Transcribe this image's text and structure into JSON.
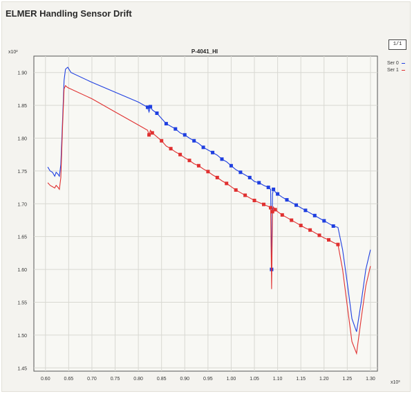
{
  "window": {
    "title": "ELMER Handling Sensor Drift"
  },
  "legend_box": {
    "label": "1/1"
  },
  "chart_data": {
    "type": "line",
    "title": "P-4041_HI",
    "xlabel": "",
    "ylabel": "",
    "x_exponent_label": "x10³",
    "y_exponent_label": "x10²",
    "xlim": [
      0.575,
      1.315
    ],
    "ylim": [
      1.445,
      1.925
    ],
    "x_ticks": [
      0.6,
      0.65,
      0.7,
      0.75,
      0.8,
      0.85,
      0.9,
      0.95,
      1.0,
      1.05,
      1.1,
      1.15,
      1.2,
      1.25,
      1.3
    ],
    "x_tick_labels": [
      "0.60",
      "0.65",
      "0.70",
      "0.75",
      "0.80",
      "0.85",
      "0.90",
      "0.95",
      "1.00",
      "1.05",
      "1.10",
      "1.15",
      "1.20",
      "1.25",
      "1.30"
    ],
    "y_ticks": [
      1.45,
      1.5,
      1.55,
      1.6,
      1.65,
      1.7,
      1.75,
      1.8,
      1.85,
      1.9
    ],
    "y_tick_labels": [
      "1.45",
      "1.50",
      "1.55",
      "1.60",
      "1.65",
      "1.70",
      "1.75",
      "1.80",
      "1.85",
      "1.90"
    ],
    "grid": true,
    "legend_position": "right",
    "series": [
      {
        "name": "Ser 0",
        "color": "#1f3fe0",
        "x": [
          0.605,
          0.61,
          0.615,
          0.62,
          0.623,
          0.627,
          0.63,
          0.633,
          0.637,
          0.64,
          0.643,
          0.648,
          0.655,
          0.7,
          0.75,
          0.8,
          0.82,
          0.823,
          0.826,
          0.83,
          0.84,
          0.85,
          0.86,
          0.87,
          0.88,
          0.89,
          0.9,
          0.91,
          0.92,
          0.93,
          0.94,
          0.95,
          0.96,
          0.97,
          0.98,
          0.99,
          1.0,
          1.01,
          1.02,
          1.03,
          1.04,
          1.05,
          1.06,
          1.07,
          1.08,
          1.085,
          1.087,
          1.089,
          1.091,
          1.095,
          1.1,
          1.11,
          1.12,
          1.13,
          1.14,
          1.15,
          1.16,
          1.17,
          1.18,
          1.19,
          1.2,
          1.21,
          1.22,
          1.23,
          1.24,
          1.25,
          1.26,
          1.27,
          1.28,
          1.29,
          1.3
        ],
        "y": [
          1.756,
          1.75,
          1.748,
          1.742,
          1.748,
          1.745,
          1.742,
          1.76,
          1.83,
          1.888,
          1.905,
          1.908,
          1.9,
          1.885,
          1.87,
          1.855,
          1.847,
          1.84,
          1.848,
          1.843,
          1.838,
          1.83,
          1.822,
          1.818,
          1.814,
          1.808,
          1.805,
          1.8,
          1.796,
          1.792,
          1.786,
          1.782,
          1.778,
          1.774,
          1.768,
          1.764,
          1.758,
          1.752,
          1.748,
          1.744,
          1.74,
          1.734,
          1.732,
          1.728,
          1.725,
          1.722,
          1.6,
          1.715,
          1.722,
          1.718,
          1.715,
          1.71,
          1.706,
          1.702,
          1.698,
          1.694,
          1.69,
          1.686,
          1.682,
          1.678,
          1.674,
          1.67,
          1.666,
          1.664,
          1.63,
          1.58,
          1.525,
          1.505,
          1.55,
          1.6,
          1.63
        ]
      },
      {
        "name": "Ser 1",
        "color": "#e03030",
        "x": [
          0.605,
          0.61,
          0.615,
          0.62,
          0.623,
          0.627,
          0.63,
          0.633,
          0.637,
          0.64,
          0.643,
          0.648,
          0.7,
          0.75,
          0.8,
          0.82,
          0.823,
          0.826,
          0.83,
          0.84,
          0.85,
          0.86,
          0.87,
          0.88,
          0.89,
          0.9,
          0.91,
          0.92,
          0.93,
          0.94,
          0.95,
          0.96,
          0.97,
          0.98,
          0.99,
          1.0,
          1.01,
          1.02,
          1.03,
          1.04,
          1.05,
          1.06,
          1.07,
          1.08,
          1.085,
          1.087,
          1.089,
          1.091,
          1.095,
          1.1,
          1.11,
          1.12,
          1.13,
          1.14,
          1.15,
          1.16,
          1.17,
          1.18,
          1.19,
          1.2,
          1.21,
          1.22,
          1.23,
          1.24,
          1.25,
          1.26,
          1.27,
          1.28,
          1.29,
          1.3
        ],
        "y": [
          1.732,
          1.728,
          1.726,
          1.724,
          1.728,
          1.725,
          1.722,
          1.74,
          1.82,
          1.875,
          1.88,
          1.877,
          1.86,
          1.84,
          1.82,
          1.812,
          1.805,
          1.812,
          1.808,
          1.802,
          1.796,
          1.788,
          1.784,
          1.779,
          1.775,
          1.77,
          1.766,
          1.761,
          1.758,
          1.753,
          1.749,
          1.744,
          1.74,
          1.735,
          1.731,
          1.726,
          1.721,
          1.717,
          1.713,
          1.709,
          1.705,
          1.702,
          1.699,
          1.696,
          1.694,
          1.57,
          1.688,
          1.695,
          1.691,
          1.688,
          1.683,
          1.679,
          1.675,
          1.671,
          1.667,
          1.663,
          1.66,
          1.656,
          1.652,
          1.648,
          1.645,
          1.641,
          1.638,
          1.6,
          1.545,
          1.49,
          1.472,
          1.525,
          1.575,
          1.605
        ]
      }
    ]
  }
}
